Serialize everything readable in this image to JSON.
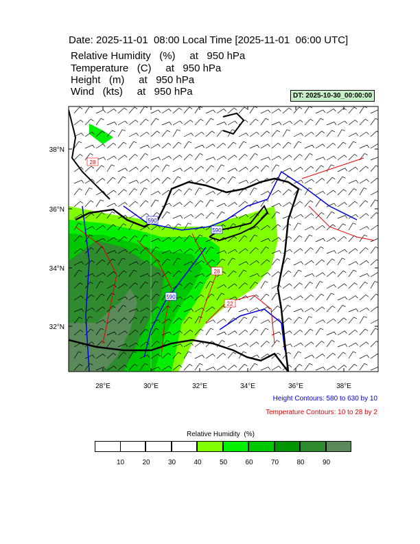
{
  "header": {
    "title": "Date: 2025-11-01  08:00 Local Time [2025-11-01  06:00 UTC]",
    "lines": [
      "Relative Humidity   (%)     at   950 hPa",
      "Temperature   (C)     at   950 hPa",
      "Height   (m)     at   950 hPa",
      "Wind   (kts)     at   950 hPa"
    ]
  },
  "dt_label": "DT: 2025-10-30_00:00:00",
  "map": {
    "lat_labels": [
      "38°N",
      "36°N",
      "34°N",
      "32°N"
    ],
    "lon_labels": [
      "28°E",
      "30°E",
      "32°E",
      "34°E",
      "36°E",
      "38°E"
    ],
    "contour_labels": [
      "590",
      "590",
      "590",
      "28",
      "22",
      "28"
    ]
  },
  "notes": [
    "Height Contours: 580 to 630 by 10",
    "Temperature Contours: 10 to 28 by 2"
  ],
  "colorbar": {
    "title": "Relative Humidity  (%)",
    "labels": [
      "10",
      "20",
      "30",
      "40",
      "50",
      "60",
      "70",
      "80",
      "90"
    ],
    "colors": [
      "#ffffff",
      "#ffffff",
      "#ffffff",
      "#ffffff",
      "#80ff00",
      "#00f000",
      "#00c800",
      "#009600",
      "#2e8b2e",
      "#5a8a5a"
    ]
  }
}
